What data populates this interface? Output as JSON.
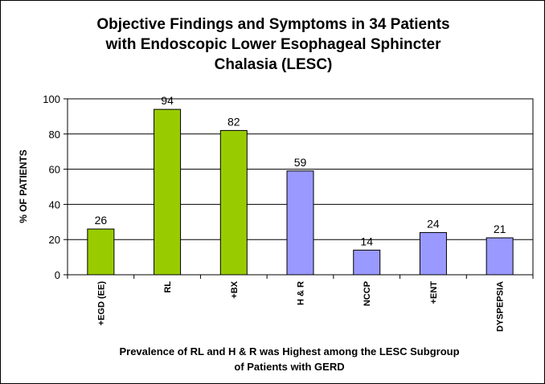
{
  "chart_data": {
    "type": "bar",
    "title": "Objective Findings and Symptoms in 34 Patients\nwith Endoscopic Lower Esophageal Sphincter\nChalasia (LESC)",
    "xlabel": "Prevalence of RL and H & R was Highest among the LESC Subgroup\nof Patients with GERD",
    "ylabel": "% OF PATIENTS",
    "categories": [
      "+EGD (EE)",
      "RL",
      "+BX",
      "H & R",
      "NCCP",
      "+ENT",
      "DYSPEPSIA"
    ],
    "values": [
      26,
      94,
      82,
      59,
      14,
      24,
      21
    ],
    "bar_colors": [
      "#99cc00",
      "#99cc00",
      "#99cc00",
      "#9999ff",
      "#9999ff",
      "#9999ff",
      "#9999ff"
    ],
    "ylim": [
      0,
      100
    ],
    "yticks": [
      0,
      20,
      40,
      60,
      80,
      100
    ],
    "grid": true,
    "legend": "none"
  }
}
